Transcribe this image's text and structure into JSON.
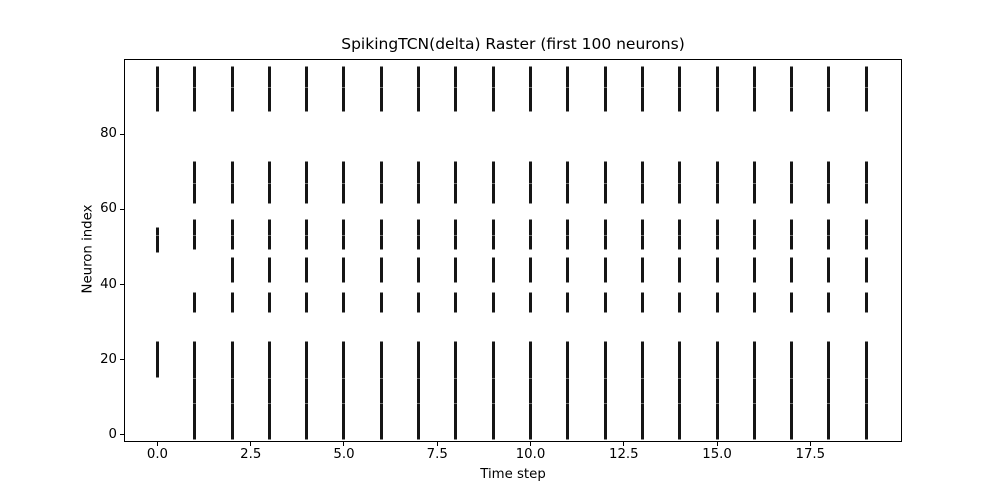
{
  "chart_data": {
    "type": "scatter",
    "marker": "|",
    "marker_color": "#151515",
    "background_color": "#ffffff",
    "title": "SpikingTCN(delta) Raster (first 100 neurons)",
    "xlabel": "Time step",
    "ylabel": "Neuron index",
    "xlim": [
      -0.87,
      19.93
    ],
    "ylim": [
      -1.6,
      99.7
    ],
    "grid": false,
    "legend": null,
    "x_ticks": {
      "values": [
        0,
        2.5,
        5,
        7.5,
        10,
        12.5,
        15,
        17.5
      ],
      "labels": [
        "0.0",
        "2.5",
        "5.0",
        "7.5",
        "10.0",
        "12.5",
        "15.0",
        "17.5"
      ]
    },
    "y_ticks": {
      "values": [
        0,
        20,
        40,
        60,
        80
      ],
      "labels": [
        "0",
        "20",
        "40",
        "60",
        "80"
      ]
    },
    "segment_note": "Spike raster: at each integer time step t a column of vertical bars marks spiking neurons; each segment is a contiguous neuron-index range [low, high].",
    "seam_values": [
      8.5,
      15.2,
      53.2,
      67,
      92.5
    ],
    "columns": [
      {
        "t": 0,
        "segments": [
          [
            15.2,
            25.1
          ],
          [
            48.4,
            55.4
          ],
          [
            85.8,
            98.2
          ]
        ]
      },
      {
        "t": 1,
        "segments": [
          [
            -1.3,
            25.1
          ],
          [
            32.5,
            38.1
          ],
          [
            49.3,
            57.3
          ],
          [
            61.3,
            72.9
          ],
          [
            85.8,
            98.2
          ]
        ]
      },
      {
        "t": 2,
        "segments": [
          [
            -1.3,
            25.1
          ],
          [
            32.5,
            38.1
          ],
          [
            40.5,
            47.2
          ],
          [
            49.3,
            57.3
          ],
          [
            61.3,
            72.9
          ],
          [
            85.8,
            98.2
          ]
        ]
      },
      {
        "t": 3,
        "segments": [
          [
            -1.3,
            25.1
          ],
          [
            32.5,
            38.1
          ],
          [
            40.5,
            47.2
          ],
          [
            49.3,
            57.3
          ],
          [
            61.3,
            72.9
          ],
          [
            85.8,
            98.2
          ]
        ]
      },
      {
        "t": 4,
        "segments": [
          [
            -1.3,
            25.1
          ],
          [
            32.5,
            38.1
          ],
          [
            40.5,
            47.2
          ],
          [
            49.3,
            57.3
          ],
          [
            61.3,
            72.9
          ],
          [
            85.8,
            98.2
          ]
        ]
      },
      {
        "t": 5,
        "segments": [
          [
            -1.3,
            25.1
          ],
          [
            32.5,
            38.1
          ],
          [
            40.5,
            47.2
          ],
          [
            49.3,
            57.3
          ],
          [
            61.3,
            72.9
          ],
          [
            85.8,
            98.2
          ]
        ]
      },
      {
        "t": 6,
        "segments": [
          [
            -1.3,
            25.1
          ],
          [
            32.5,
            38.1
          ],
          [
            40.5,
            47.2
          ],
          [
            49.3,
            57.3
          ],
          [
            61.3,
            72.9
          ],
          [
            85.8,
            98.2
          ]
        ]
      },
      {
        "t": 7,
        "segments": [
          [
            -1.3,
            25.1
          ],
          [
            32.5,
            38.1
          ],
          [
            40.5,
            47.2
          ],
          [
            49.3,
            57.3
          ],
          [
            61.3,
            72.9
          ],
          [
            85.8,
            98.2
          ]
        ]
      },
      {
        "t": 8,
        "segments": [
          [
            -1.3,
            25.1
          ],
          [
            32.5,
            38.1
          ],
          [
            40.5,
            47.2
          ],
          [
            49.3,
            57.3
          ],
          [
            61.3,
            72.9
          ],
          [
            85.8,
            98.2
          ]
        ]
      },
      {
        "t": 9,
        "segments": [
          [
            -1.3,
            25.1
          ],
          [
            32.5,
            38.1
          ],
          [
            40.5,
            47.2
          ],
          [
            49.3,
            57.3
          ],
          [
            61.3,
            72.9
          ],
          [
            85.8,
            98.2
          ]
        ]
      },
      {
        "t": 10,
        "segments": [
          [
            -1.3,
            25.1
          ],
          [
            32.5,
            38.1
          ],
          [
            40.5,
            47.2
          ],
          [
            49.3,
            57.3
          ],
          [
            61.3,
            72.9
          ],
          [
            85.8,
            98.2
          ]
        ]
      },
      {
        "t": 11,
        "segments": [
          [
            -1.3,
            25.1
          ],
          [
            32.5,
            38.1
          ],
          [
            40.5,
            47.2
          ],
          [
            49.3,
            57.3
          ],
          [
            61.3,
            72.9
          ],
          [
            85.8,
            98.2
          ]
        ]
      },
      {
        "t": 12,
        "segments": [
          [
            -1.3,
            25.1
          ],
          [
            32.5,
            38.1
          ],
          [
            40.5,
            47.2
          ],
          [
            49.3,
            57.3
          ],
          [
            61.3,
            72.9
          ],
          [
            85.8,
            98.2
          ]
        ]
      },
      {
        "t": 13,
        "segments": [
          [
            -1.3,
            25.1
          ],
          [
            32.5,
            38.1
          ],
          [
            40.5,
            47.2
          ],
          [
            49.3,
            57.3
          ],
          [
            61.3,
            72.9
          ],
          [
            85.8,
            98.2
          ]
        ]
      },
      {
        "t": 14,
        "segments": [
          [
            -1.3,
            25.1
          ],
          [
            32.5,
            38.1
          ],
          [
            40.5,
            47.2
          ],
          [
            49.3,
            57.3
          ],
          [
            61.3,
            72.9
          ],
          [
            85.8,
            98.2
          ]
        ]
      },
      {
        "t": 15,
        "segments": [
          [
            -1.3,
            25.1
          ],
          [
            32.5,
            38.1
          ],
          [
            40.5,
            47.2
          ],
          [
            49.3,
            57.3
          ],
          [
            61.3,
            72.9
          ],
          [
            85.8,
            98.2
          ]
        ]
      },
      {
        "t": 16,
        "segments": [
          [
            -1.3,
            25.1
          ],
          [
            32.5,
            38.1
          ],
          [
            40.5,
            47.2
          ],
          [
            49.3,
            57.3
          ],
          [
            61.3,
            72.9
          ],
          [
            85.8,
            98.2
          ]
        ]
      },
      {
        "t": 17,
        "segments": [
          [
            -1.3,
            25.1
          ],
          [
            32.5,
            38.1
          ],
          [
            40.5,
            47.2
          ],
          [
            49.3,
            57.3
          ],
          [
            61.3,
            72.9
          ],
          [
            85.8,
            98.2
          ]
        ]
      },
      {
        "t": 18,
        "segments": [
          [
            -1.3,
            25.1
          ],
          [
            32.5,
            38.1
          ],
          [
            40.5,
            47.2
          ],
          [
            49.3,
            57.3
          ],
          [
            61.3,
            72.9
          ],
          [
            85.8,
            98.2
          ]
        ]
      },
      {
        "t": 19,
        "segments": [
          [
            -1.3,
            25.1
          ],
          [
            32.5,
            38.1
          ],
          [
            40.5,
            47.2
          ],
          [
            49.3,
            57.3
          ],
          [
            61.3,
            72.9
          ],
          [
            85.8,
            98.2
          ]
        ]
      }
    ]
  }
}
